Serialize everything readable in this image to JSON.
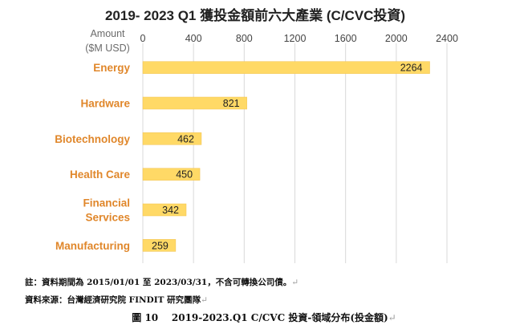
{
  "colors": {
    "bar": "#FFD966",
    "bar_edge": "#F2C24F",
    "category_label": "#E0872B",
    "grid": "#D9D9D9"
  },
  "chart_data": {
    "type": "bar",
    "orientation": "horizontal",
    "title": "2019- 2023 Q1 獲投金額前六大產業 (C/CVC投資)",
    "unit_label": [
      "Amount",
      "($M USD)"
    ],
    "categories": [
      "Energy",
      "Hardware",
      "Biotechnology",
      "Health Care",
      [
        "Financial",
        "Services"
      ],
      "Manufacturing"
    ],
    "values": [
      2264,
      821,
      462,
      450,
      342,
      259
    ],
    "value_labels": [
      "2264",
      "821",
      "462",
      "450",
      "342",
      "259"
    ],
    "xlim": [
      0,
      2400
    ],
    "ticks": [
      "0",
      "400",
      "800",
      "1200",
      "1600",
      "2000",
      "2400"
    ],
    "tick_values": [
      0,
      400,
      800,
      1200,
      1600,
      2000,
      2400
    ],
    "axis_position": "top",
    "grid": true
  },
  "notes": {
    "footnote": "註：資料期間為 2015/01/01 至 2023/03/31，不含可轉換公司債。",
    "source": "資料來源：台灣經濟研究院 FINDIT 研究團隊",
    "return_mark": "↵"
  },
  "caption": {
    "figure_number": "圖 10",
    "text": "2019-2023.Q1 C/CVC 投資-領域分布(投金額)",
    "return_mark": "↵"
  }
}
